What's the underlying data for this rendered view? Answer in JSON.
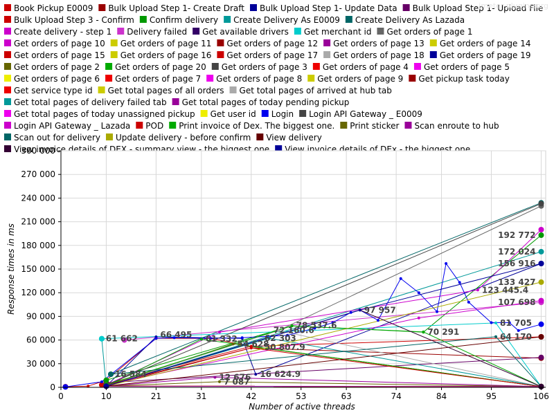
{
  "chart_data": {
    "type": "line",
    "title": "",
    "xlabel": "Number of active threads",
    "ylabel": "Response times in ms",
    "xlim": [
      0,
      107
    ],
    "ylim": [
      0,
      300000
    ],
    "x_ticks": [
      0,
      10,
      21,
      31,
      42,
      53,
      63,
      74,
      84,
      95,
      106
    ],
    "y_ticks": [
      0,
      30000,
      60000,
      90000,
      120000,
      150000,
      180000,
      210000,
      240000,
      270000,
      300000
    ],
    "x_tick_labels": [
      "0",
      "10",
      "21",
      "31",
      "42",
      "53",
      "63",
      "74",
      "84",
      "95",
      "106"
    ],
    "y_tick_labels": [
      "0",
      "30 000",
      "60 000",
      "90 000",
      "120 000",
      "150 000",
      "180 000",
      "210 000",
      "240 000",
      "270 000",
      "300 000"
    ],
    "grid": true,
    "legend_position": "top",
    "watermark": "jmeter-plugins.org",
    "series": [
      {
        "name": "Book Pickup E0009",
        "color": "#cc0000",
        "points": [
          [
            1,
            800
          ],
          [
            6,
            1500
          ],
          [
            10,
            9000
          ],
          [
            21,
            62000
          ],
          [
            33,
            62000
          ],
          [
            42,
            52000
          ],
          [
            106,
            64000
          ]
        ]
      },
      {
        "name": "Bulk Upload Step 1- Create Draft",
        "color": "#990000",
        "points": [
          [
            10,
            1500
          ],
          [
            42,
            50000
          ],
          [
            106,
            37000
          ]
        ]
      },
      {
        "name": "Bulk Upload Step 1- Update Data",
        "color": "#000099",
        "points": [
          [
            10,
            1500
          ],
          [
            21,
            64000
          ],
          [
            40,
            62000
          ],
          [
            43,
            16600
          ],
          [
            106,
            157000
          ]
        ]
      },
      {
        "name": "Bulk Upload Step 1- Upload File",
        "color": "#660066",
        "points": [
          [
            10,
            6000
          ],
          [
            106,
            38000
          ]
        ]
      },
      {
        "name": "Bulk Upload Step 3 - Confirm",
        "color": "#cc0000",
        "points": [
          [
            9,
            3000
          ],
          [
            42,
            52000
          ],
          [
            106,
            1000
          ]
        ]
      },
      {
        "name": "Confirm delivery",
        "color": "#009900",
        "points": [
          [
            10,
            9000
          ],
          [
            51,
            78000
          ],
          [
            80,
            70000
          ],
          [
            106,
            193000
          ]
        ]
      },
      {
        "name": "Create Delivery As E0009",
        "color": "#009999",
        "points": [
          [
            9,
            61662
          ],
          [
            10,
            1000
          ],
          [
            106,
            172024
          ]
        ]
      },
      {
        "name": "Create Delivery As Lazada",
        "color": "#006666",
        "points": [
          [
            11,
            16584
          ],
          [
            106,
            234000
          ]
        ]
      },
      {
        "name": "Create delivery - step 1",
        "color": "#cc00cc",
        "points": [
          [
            10,
            3000
          ],
          [
            35,
            70000
          ],
          [
            92,
            123445
          ],
          [
            106,
            200000
          ]
        ]
      },
      {
        "name": "Delivery failed",
        "color": "#cc33cc",
        "points": [
          [
            14,
            60000
          ],
          [
            106,
            107698
          ]
        ]
      },
      {
        "name": "Get available drivers",
        "color": "#330066",
        "points": [
          [
            10,
            1500
          ],
          [
            106,
            1000
          ]
        ]
      },
      {
        "name": "Get merchant id",
        "color": "#00cccc",
        "points": [
          [
            9,
            61662
          ],
          [
            96,
            81705
          ],
          [
            106,
            1000
          ]
        ]
      },
      {
        "name": "Get orders of page 1",
        "color": "#666666",
        "points": [
          [
            10,
            3000
          ],
          [
            48,
            72000
          ],
          [
            106,
            230000
          ]
        ]
      },
      {
        "name": "Get orders of page 10",
        "color": "#cc00cc",
        "points": [
          [
            10,
            1500
          ],
          [
            106,
            1000
          ]
        ]
      },
      {
        "name": "Get orders of page 11",
        "color": "#cccc00",
        "points": [
          [
            10,
            1500
          ],
          [
            106,
            1000
          ]
        ]
      },
      {
        "name": "Get orders of page 12",
        "color": "#990000",
        "points": [
          [
            10,
            1500
          ],
          [
            106,
            1000
          ]
        ]
      },
      {
        "name": "Get orders of page 13",
        "color": "#990099",
        "points": [
          [
            10,
            1500
          ],
          [
            106,
            1000
          ]
        ]
      },
      {
        "name": "Get orders of page 14",
        "color": "#cccc00",
        "points": [
          [
            10,
            1500
          ],
          [
            106,
            1000
          ]
        ]
      },
      {
        "name": "Get orders of page 15",
        "color": "#cc0000",
        "points": [
          [
            10,
            1500
          ],
          [
            106,
            1000
          ]
        ]
      },
      {
        "name": "Get orders of page 16",
        "color": "#cccc00",
        "points": [
          [
            10,
            1500
          ],
          [
            106,
            1000
          ]
        ]
      },
      {
        "name": "Get orders of page 17",
        "color": "#cc0000",
        "points": [
          [
            10,
            1500
          ],
          [
            106,
            1000
          ]
        ]
      },
      {
        "name": "Get orders of page 18",
        "color": "#aaaaaa",
        "points": [
          [
            10,
            1500
          ],
          [
            106,
            1000
          ]
        ]
      },
      {
        "name": "Get orders of page 19",
        "color": "#000099",
        "points": [
          [
            10,
            1500
          ],
          [
            106,
            1000
          ]
        ]
      },
      {
        "name": "Get orders of page 2",
        "color": "#666600",
        "points": [
          [
            10,
            1500
          ],
          [
            38,
            55000
          ],
          [
            106,
            1000
          ]
        ]
      },
      {
        "name": "Get orders of page 20",
        "color": "#00aa00",
        "points": [
          [
            10,
            1500
          ],
          [
            31,
            61000
          ],
          [
            106,
            1000
          ]
        ]
      },
      {
        "name": "Get orders of page 3",
        "color": "#444444",
        "points": [
          [
            10,
            1500
          ],
          [
            106,
            1000
          ]
        ]
      },
      {
        "name": "Get orders of page 4",
        "color": "#ee0000",
        "points": [
          [
            10,
            1500
          ],
          [
            106,
            1000
          ]
        ]
      },
      {
        "name": "Get orders of page 5",
        "color": "#ee00ee",
        "points": [
          [
            10,
            1500
          ],
          [
            106,
            1000
          ]
        ]
      },
      {
        "name": "Get orders of page 6",
        "color": "#eeee00",
        "points": [
          [
            10,
            1500
          ],
          [
            106,
            1000
          ]
        ]
      },
      {
        "name": "Get orders of page 7",
        "color": "#ee0000",
        "points": [
          [
            10,
            1500
          ],
          [
            106,
            1000
          ]
        ]
      },
      {
        "name": "Get orders of page 8",
        "color": "#ee00ee",
        "points": [
          [
            10,
            1500
          ],
          [
            106,
            1000
          ]
        ]
      },
      {
        "name": "Get orders of page 9",
        "color": "#cccc00",
        "points": [
          [
            10,
            1500
          ],
          [
            106,
            1000
          ]
        ]
      },
      {
        "name": "Get pickup task today",
        "color": "#990000",
        "points": [
          [
            10,
            1500
          ],
          [
            106,
            1000
          ]
        ]
      },
      {
        "name": "Get service type id",
        "color": "#ee0000",
        "points": [
          [
            10,
            1500
          ],
          [
            106,
            1000
          ]
        ]
      },
      {
        "name": "Get total pages of all orders",
        "color": "#cccc00",
        "points": [
          [
            10,
            1500
          ],
          [
            106,
            1000
          ]
        ]
      },
      {
        "name": "Get total pages of arrived at hub tab",
        "color": "#aaaaaa",
        "points": [
          [
            10,
            1500
          ],
          [
            48,
            72000
          ],
          [
            106,
            1000
          ]
        ]
      },
      {
        "name": "Get total pages of delivery failed tab",
        "color": "#009999",
        "points": [
          [
            10,
            1500
          ],
          [
            46,
            62303
          ],
          [
            106,
            1000
          ]
        ]
      },
      {
        "name": "Get total pages of today pending pickup",
        "color": "#990099",
        "points": [
          [
            10,
            1500
          ],
          [
            34,
            12676
          ],
          [
            106,
            1000
          ]
        ]
      },
      {
        "name": "Get total pages of today unassigned pickup",
        "color": "#ee00ee",
        "points": [
          [
            10,
            1500
          ],
          [
            106,
            1000
          ]
        ]
      },
      {
        "name": "Get user id",
        "color": "#eeee00",
        "points": [
          [
            10,
            1500
          ],
          [
            106,
            1000
          ]
        ]
      },
      {
        "name": "Login",
        "color": "#0000ee",
        "points": [
          [
            1,
            500
          ],
          [
            9,
            7000
          ],
          [
            21,
            62000
          ],
          [
            25,
            63000
          ],
          [
            33,
            62000
          ],
          [
            40,
            63000
          ],
          [
            50,
            66000
          ],
          [
            56,
            75000
          ],
          [
            60,
            82000
          ],
          [
            64,
            95000
          ],
          [
            66,
            97957
          ],
          [
            70,
            85000
          ],
          [
            75,
            138000
          ],
          [
            79,
            120000
          ],
          [
            83,
            96000
          ],
          [
            85,
            157000
          ],
          [
            88,
            133000
          ],
          [
            90,
            108000
          ],
          [
            95,
            82000
          ],
          [
            99,
            82000
          ],
          [
            101,
            72000
          ],
          [
            106,
            80000
          ]
        ]
      },
      {
        "name": "Login API Gateway _ E0009",
        "color": "#444444",
        "points": [
          [
            10,
            3000
          ],
          [
            106,
            233000
          ]
        ]
      },
      {
        "name": "Login API Gateway _ Lazada",
        "color": "#cc00cc",
        "points": [
          [
            10,
            3000
          ],
          [
            79,
            88000
          ],
          [
            106,
            110000
          ]
        ]
      },
      {
        "name": "POD",
        "color": "#cc0000",
        "points": [
          [
            10,
            3000
          ],
          [
            42,
            50000
          ],
          [
            106,
            1000
          ]
        ]
      },
      {
        "name": "Print invoice of Dex. The biggest one.",
        "color": "#00aa00",
        "points": [
          [
            10,
            3000
          ],
          [
            51,
            78000
          ],
          [
            80,
            70291
          ],
          [
            106,
            1000
          ]
        ]
      },
      {
        "name": "Print sticker",
        "color": "#666600",
        "points": [
          [
            10,
            1500
          ],
          [
            35,
            7087
          ],
          [
            106,
            1000
          ]
        ]
      },
      {
        "name": "Scan enroute to hub",
        "color": "#990099",
        "points": [
          [
            10,
            1500
          ],
          [
            106,
            1000
          ]
        ]
      },
      {
        "name": "Scan out for delivery",
        "color": "#006666",
        "points": [
          [
            11,
            16584
          ],
          [
            96,
            64170
          ],
          [
            106,
            1000
          ]
        ]
      },
      {
        "name": "Update delivery - before confirm",
        "color": "#aaaa00",
        "points": [
          [
            10,
            1500
          ],
          [
            106,
            133427
          ]
        ]
      },
      {
        "name": "View delivery",
        "color": "#660000",
        "points": [
          [
            10,
            1500
          ],
          [
            106,
            64000
          ]
        ]
      },
      {
        "name": "View invoice details of DEX - summary view - the biggest one",
        "color": "#330033",
        "points": [
          [
            10,
            1500
          ],
          [
            66,
            97957
          ],
          [
            106,
            1000
          ]
        ]
      },
      {
        "name": "View invoice details of DEx - the biggest one",
        "color": "#000099",
        "points": [
          [
            10,
            1500
          ],
          [
            66,
            97957
          ],
          [
            106,
            157000
          ]
        ]
      }
    ],
    "data_labels": [
      {
        "text": "61 662",
        "x": 9,
        "y": 61662
      },
      {
        "text": "66 495",
        "x": 21,
        "y": 66495
      },
      {
        "text": "61 332",
        "x": 31,
        "y": 61332
      },
      {
        "text": "54 628",
        "x": 38,
        "y": 54628
      },
      {
        "text": "62 303",
        "x": 44,
        "y": 62303
      },
      {
        "text": "72 160.6",
        "x": 46,
        "y": 72160
      },
      {
        "text": "78 537.6",
        "x": 51,
        "y": 78537
      },
      {
        "text": "50 807.9",
        "x": 44,
        "y": 50807
      },
      {
        "text": "97 957",
        "x": 66,
        "y": 97957
      },
      {
        "text": "70 291",
        "x": 80,
        "y": 70291
      },
      {
        "text": "123 445.4",
        "x": 92,
        "y": 123445
      },
      {
        "text": "81 705",
        "x": 96,
        "y": 81705
      },
      {
        "text": "64 170",
        "x": 96,
        "y": 64170
      },
      {
        "text": "192 772",
        "x": 106,
        "y": 192772
      },
      {
        "text": "172 024",
        "x": 106,
        "y": 172024
      },
      {
        "text": "156 916",
        "x": 106,
        "y": 156916
      },
      {
        "text": "133 427",
        "x": 106,
        "y": 133427
      },
      {
        "text": "107 698",
        "x": 106,
        "y": 107698
      },
      {
        "text": "16 584",
        "x": 11,
        "y": 16584
      },
      {
        "text": "12 676",
        "x": 34,
        "y": 12676
      },
      {
        "text": "16 624.9",
        "x": 43,
        "y": 16624
      },
      {
        "text": "7 087",
        "x": 35,
        "y": 7087
      }
    ]
  }
}
